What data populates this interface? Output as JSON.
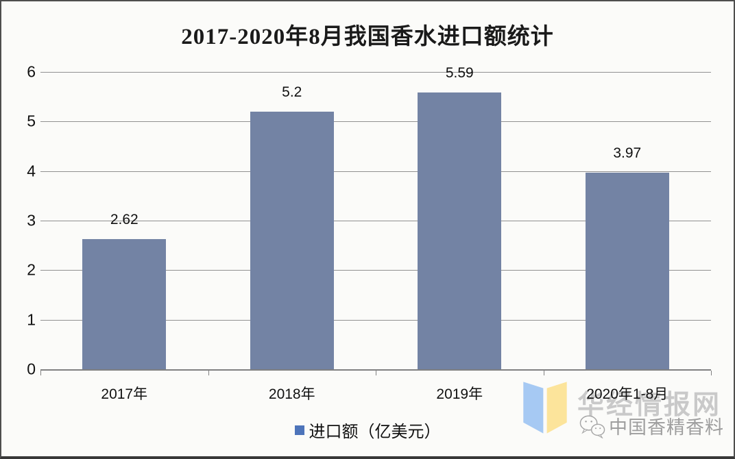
{
  "chart_data": {
    "type": "bar",
    "title": "2017-2020年8月我国香水进口额统计",
    "categories": [
      "2017年",
      "2018年",
      "2019年",
      "2020年1-8月"
    ],
    "values": [
      2.62,
      5.2,
      5.59,
      3.97
    ],
    "value_labels": [
      "2.62",
      "5.2",
      "5.59",
      "3.97"
    ],
    "xlabel": "",
    "ylabel": "",
    "ylim": [
      0,
      6
    ],
    "yticks": [
      0,
      1,
      2,
      3,
      4,
      5,
      6
    ],
    "grid": true,
    "legend": {
      "label": "进口额（亿美元）",
      "position": "bottom"
    }
  },
  "watermark": {
    "site_name": "华经情报网",
    "wechat_name": "中国香精香料"
  },
  "colors": {
    "bar": "#7383a4",
    "legend_marker": "#4d74ba",
    "gridline": "#909090",
    "axis": "#808080",
    "title_text": "#1a1a1a",
    "label_text": "#111111",
    "watermark_site": "#c9c9c9",
    "watermark_wechat": "#9e9e9e",
    "logo_blue": "#a6c9f3",
    "logo_yellow": "#fce49b"
  }
}
